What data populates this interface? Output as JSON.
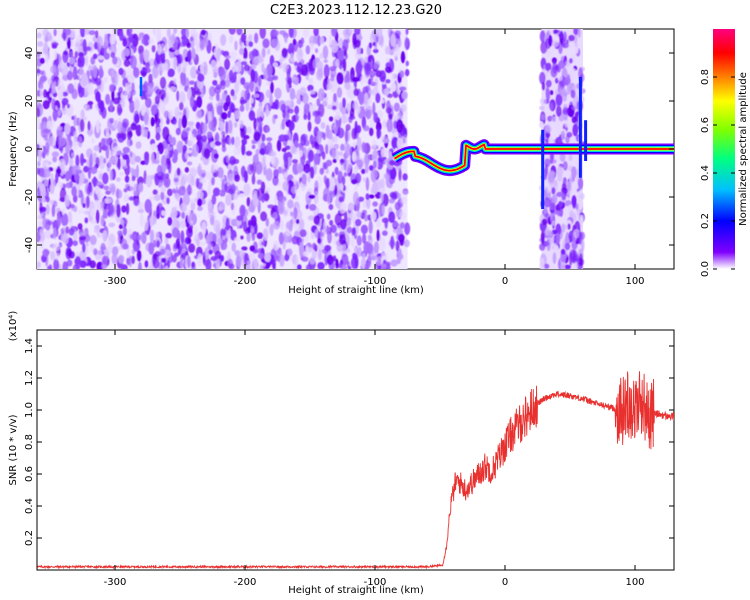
{
  "title": "C2E3.2023.112.12.23.G20",
  "chart_data": [
    {
      "type": "heatmap",
      "xlabel": "Height of straight line (km)",
      "ylabel": "Frequency (Hz)",
      "xlim": [
        -360,
        130
      ],
      "ylim": [
        -50,
        50
      ],
      "xticks": [
        -300,
        -200,
        -100,
        0,
        100
      ],
      "yticks": [
        -40,
        -20,
        0,
        20,
        40
      ],
      "grid": false,
      "colorbar": {
        "label": "Normalized spectral amplitude",
        "range": [
          0,
          1
        ],
        "ticks": [
          "0.0",
          "0.2",
          "0.4",
          "0.6",
          "0.8"
        ],
        "colors": [
          "#ffffff",
          "#8000ff",
          "#0000ff",
          "#00c0ff",
          "#00ff80",
          "#80ff00",
          "#ffff00",
          "#ff8000",
          "#ff0000",
          "#ff0080"
        ]
      },
      "regions": [
        {
          "feature": "broadband noise",
          "x_range": [
            -360,
            -75
          ],
          "y_range": [
            -50,
            50
          ]
        },
        {
          "feature": "carrier line near 0 Hz",
          "x_range": [
            -85,
            130
          ],
          "y_center": 0
        },
        {
          "feature": "noise band",
          "x_range": [
            28,
            60
          ],
          "y_range": [
            -50,
            50
          ]
        }
      ]
    },
    {
      "type": "line",
      "xlabel": "Height of straight line (km)",
      "ylabel": "SNR (10 * v/v)",
      "y_multiplier": "(x10⁴)",
      "xlim": [
        -360,
        130
      ],
      "ylim": [
        0,
        1.5
      ],
      "xticks": [
        -300,
        -200,
        -100,
        0,
        100
      ],
      "yticks": [
        "0.2",
        "0.4",
        "0.6",
        "0.8",
        "1.0",
        "1.2",
        "1.4"
      ],
      "grid": false,
      "series": [
        {
          "color": "#e8312f",
          "x": [
            -360,
            -300,
            -250,
            -200,
            -150,
            -100,
            -60,
            -48,
            -45,
            -42,
            -38,
            -35,
            -30,
            -25,
            -20,
            -15,
            -10,
            -5,
            0,
            5,
            10,
            15,
            20,
            25,
            30,
            35,
            40,
            50,
            60,
            70,
            80,
            90,
            95,
            100,
            105,
            110,
            115,
            120,
            125,
            130
          ],
          "values": [
            0.02,
            0.02,
            0.02,
            0.02,
            0.02,
            0.02,
            0.02,
            0.03,
            0.15,
            0.4,
            0.55,
            0.55,
            0.5,
            0.55,
            0.6,
            0.65,
            0.62,
            0.7,
            0.78,
            0.85,
            0.9,
            0.95,
            1.0,
            1.04,
            1.07,
            1.09,
            1.1,
            1.09,
            1.07,
            1.04,
            1.02,
            0.99,
            1.05,
            1.0,
            1.07,
            0.96,
            0.98,
            0.97,
            0.96,
            0.96
          ]
        }
      ]
    }
  ]
}
